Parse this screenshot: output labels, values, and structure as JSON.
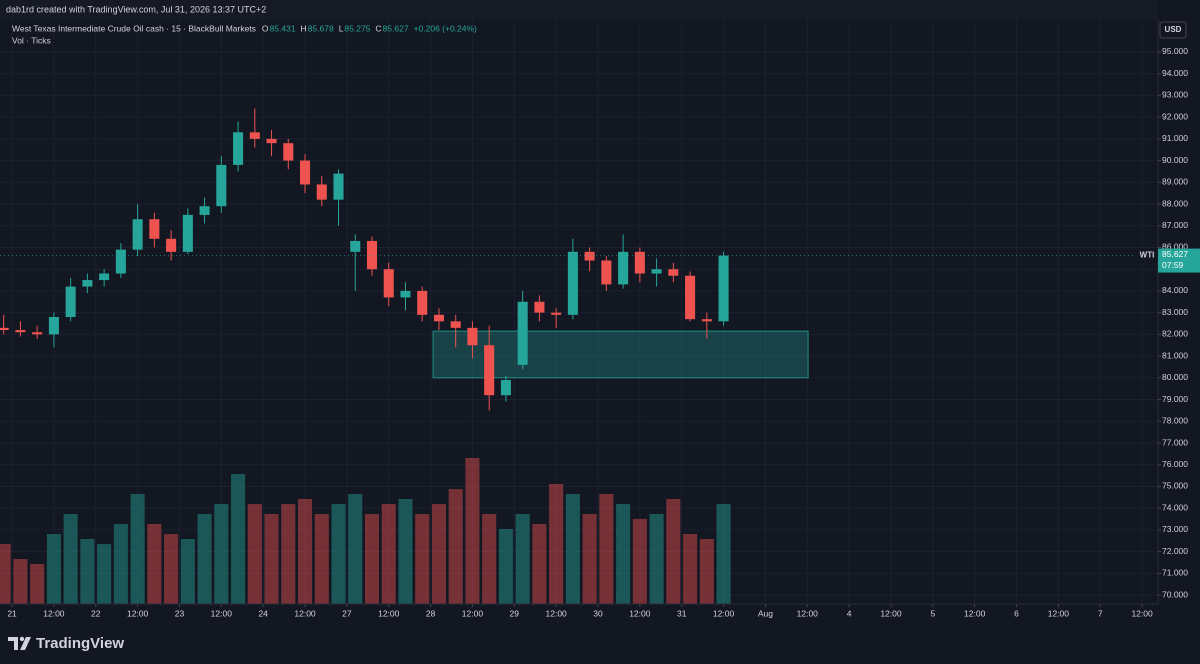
{
  "header": {
    "credit": "dab1rd created with TradingView.com, Jul 31, 2026 13:37 UTC+2",
    "symbol": "West Texas Intermediate Crude Oil cash · 15 · BlackBull Markets",
    "ohlc": [
      {
        "key": "O",
        "value": "85.431"
      },
      {
        "key": "H",
        "value": "85.678"
      },
      {
        "key": "L",
        "value": "85.275"
      },
      {
        "key": "C",
        "value": "85.627"
      }
    ],
    "change": "+0.206 (+0.24%)",
    "volume_label": "Vol · Ticks",
    "currency": "USD",
    "ticker_tag": "WTI",
    "countdown": "07:59"
  },
  "footer": {
    "brand": "TradingView"
  },
  "chart_data": {
    "type": "candlestick",
    "up_color": "#26a69a",
    "down_color": "#ef5350",
    "grid": true,
    "x": [
      -0.1,
      0.1,
      0.3,
      0.5,
      0.7,
      0.9,
      1.1,
      1.3,
      1.5,
      1.7,
      1.9,
      2.1,
      2.3,
      2.5,
      2.7,
      2.9,
      3.1,
      3.3,
      3.5,
      3.7,
      3.9,
      4.1,
      4.3,
      4.5,
      4.7,
      4.9,
      5.1,
      5.3,
      5.5,
      5.7,
      5.9,
      6.1,
      6.3,
      6.5,
      6.7,
      6.9,
      7.1,
      7.3,
      7.5,
      7.7,
      7.9,
      8.1,
      8.3,
      8.5
    ],
    "open": [
      82.3,
      82.2,
      82.1,
      82.0,
      82.8,
      84.2,
      84.5,
      84.8,
      85.9,
      87.3,
      86.4,
      85.8,
      87.5,
      87.9,
      89.8,
      91.3,
      91.0,
      90.8,
      90.0,
      88.9,
      88.2,
      85.8,
      86.3,
      85.0,
      83.7,
      84.0,
      82.9,
      82.6,
      82.3,
      81.5,
      79.2,
      80.6,
      83.5,
      83.0,
      82.9,
      85.8,
      85.4,
      84.3,
      85.8,
      84.8,
      85.0,
      84.7,
      82.7,
      82.6
    ],
    "high": [
      82.9,
      82.6,
      82.4,
      83.0,
      84.6,
      84.8,
      85.0,
      86.2,
      88.0,
      87.6,
      86.8,
      87.8,
      88.3,
      90.2,
      91.8,
      92.4,
      91.4,
      91.0,
      90.3,
      89.3,
      89.6,
      86.6,
      86.5,
      85.3,
      84.4,
      84.2,
      83.2,
      82.9,
      82.6,
      82.4,
      80.1,
      84.0,
      83.8,
      83.2,
      86.4,
      86.0,
      85.6,
      86.6,
      86.0,
      85.5,
      85.3,
      84.9,
      83.0,
      85.8
    ],
    "low": [
      82.0,
      81.9,
      81.8,
      81.4,
      82.6,
      83.9,
      84.2,
      84.6,
      85.6,
      86.0,
      85.4,
      85.7,
      87.1,
      87.6,
      89.5,
      90.6,
      90.2,
      89.6,
      88.5,
      87.9,
      87.0,
      84.0,
      84.7,
      83.3,
      83.1,
      82.6,
      82.2,
      81.4,
      80.9,
      78.5,
      78.9,
      80.4,
      82.6,
      82.3,
      82.7,
      84.9,
      84.0,
      84.1,
      84.4,
      84.2,
      84.4,
      82.6,
      81.8,
      82.4
    ],
    "close": [
      82.2,
      82.1,
      82.0,
      82.8,
      84.2,
      84.5,
      84.8,
      85.9,
      87.3,
      86.4,
      85.8,
      87.5,
      87.9,
      89.8,
      91.3,
      91.0,
      90.8,
      90.0,
      88.9,
      88.2,
      89.4,
      86.3,
      85.0,
      83.7,
      84.0,
      82.9,
      82.6,
      82.3,
      81.5,
      79.2,
      79.9,
      83.5,
      83.0,
      82.9,
      85.8,
      85.4,
      84.3,
      85.8,
      84.8,
      85.0,
      84.7,
      82.7,
      82.6,
      85.627
    ],
    "volume": [
      600,
      450,
      400,
      700,
      900,
      650,
      600,
      800,
      1100,
      800,
      700,
      650,
      900,
      1000,
      1300,
      1000,
      900,
      1000,
      1050,
      900,
      1000,
      1100,
      900,
      1000,
      1050,
      900,
      1000,
      1150,
      1460,
      900,
      750,
      900,
      800,
      1200,
      1100,
      900,
      1100,
      1000,
      850,
      900,
      1050,
      700,
      650,
      1000
    ],
    "last_price": 85.627,
    "zone": {
      "x": [
        5.03,
        9.51
      ],
      "y": [
        80.0,
        82.15
      ],
      "color": "#26a69a"
    },
    "xlim": [
      -0.144,
      13.69
    ],
    "xticks": [
      {
        "value": 0,
        "label": "21"
      },
      {
        "value": 0.5,
        "label": "12:00"
      },
      {
        "value": 1,
        "label": "22"
      },
      {
        "value": 1.5,
        "label": "12:00"
      },
      {
        "value": 2,
        "label": "23"
      },
      {
        "value": 2.5,
        "label": "12:00"
      },
      {
        "value": 3,
        "label": "24"
      },
      {
        "value": 3.5,
        "label": "12:00"
      },
      {
        "value": 4,
        "label": "27"
      },
      {
        "value": 4.5,
        "label": "12:00"
      },
      {
        "value": 5,
        "label": "28"
      },
      {
        "value": 5.5,
        "label": "12:00"
      },
      {
        "value": 6,
        "label": "29"
      },
      {
        "value": 6.5,
        "label": "12:00"
      },
      {
        "value": 7,
        "label": "30"
      },
      {
        "value": 7.5,
        "label": "12:00"
      },
      {
        "value": 8,
        "label": "31"
      },
      {
        "value": 8.5,
        "label": "12:00"
      },
      {
        "value": 9,
        "label": "Aug"
      },
      {
        "value": 9.5,
        "label": "12:00"
      },
      {
        "value": 10,
        "label": "4"
      },
      {
        "value": 10.5,
        "label": "12:00"
      },
      {
        "value": 11,
        "label": "5"
      },
      {
        "value": 11.5,
        "label": "12:00"
      },
      {
        "value": 12,
        "label": "6"
      },
      {
        "value": 12.5,
        "label": "12:00"
      },
      {
        "value": 13,
        "label": "7"
      },
      {
        "value": 13.5,
        "label": "12:00"
      }
    ],
    "ylim": [
      69.59,
      96.47
    ],
    "yticks": [
      {
        "value": 70,
        "label": "70.000"
      },
      {
        "value": 71,
        "label": "71.000"
      },
      {
        "value": 72,
        "label": "72.000"
      },
      {
        "value": 73,
        "label": "73.000"
      },
      {
        "value": 74,
        "label": "74.000"
      },
      {
        "value": 75,
        "label": "75.000"
      },
      {
        "value": 76,
        "label": "76.000"
      },
      {
        "value": 77,
        "label": "77.000"
      },
      {
        "value": 78,
        "label": "78.000"
      },
      {
        "value": 79,
        "label": "79.000"
      },
      {
        "value": 80,
        "label": "80.000"
      },
      {
        "value": 81,
        "label": "81.000"
      },
      {
        "value": 82,
        "label": "82.000"
      },
      {
        "value": 83,
        "label": "83.000"
      },
      {
        "value": 84,
        "label": "84.000"
      },
      {
        "value": 85,
        "label": "85.000"
      },
      {
        "value": 86,
        "label": "86.000"
      },
      {
        "value": 87,
        "label": "87.000"
      },
      {
        "value": 88,
        "label": "88.000"
      },
      {
        "value": 89,
        "label": "89.000"
      },
      {
        "value": 90,
        "label": "90.000"
      },
      {
        "value": 91,
        "label": "91.000"
      },
      {
        "value": 92,
        "label": "92.000"
      },
      {
        "value": 93,
        "label": "93.000"
      },
      {
        "value": 94,
        "label": "94.000"
      },
      {
        "value": 95,
        "label": "95.000"
      }
    ]
  }
}
